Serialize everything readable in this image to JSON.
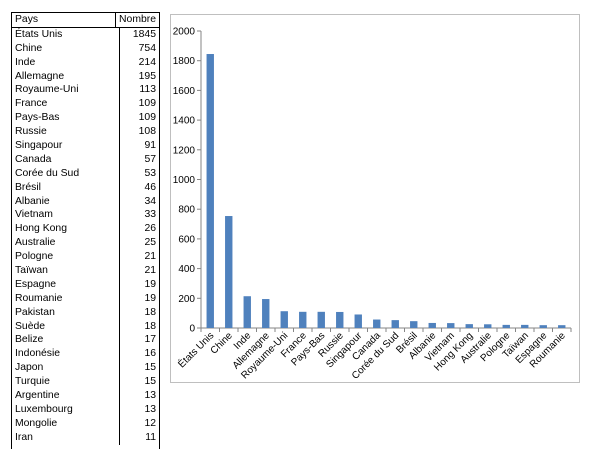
{
  "table": {
    "headers": [
      "Pays",
      "Nombre"
    ],
    "rows": [
      [
        "États Unis",
        "1845"
      ],
      [
        "Chine",
        "754"
      ],
      [
        "Inde",
        "214"
      ],
      [
        "Allemagne",
        "195"
      ],
      [
        "Royaume-Uni",
        "113"
      ],
      [
        "France",
        "109"
      ],
      [
        "Pays-Bas",
        "109"
      ],
      [
        "Russie",
        "108"
      ],
      [
        "Singapour",
        "91"
      ],
      [
        "Canada",
        "57"
      ],
      [
        "Corée du Sud",
        "53"
      ],
      [
        "Brésil",
        "46"
      ],
      [
        "Albanie",
        "34"
      ],
      [
        "Vietnam",
        "33"
      ],
      [
        "Hong Kong",
        "26"
      ],
      [
        "Australie",
        "25"
      ],
      [
        "Pologne",
        "21"
      ],
      [
        "Taïwan",
        "21"
      ],
      [
        "Espagne",
        "19"
      ],
      [
        "Roumanie",
        "19"
      ],
      [
        "Pakistan",
        "18"
      ],
      [
        "Suède",
        "18"
      ],
      [
        "Belize",
        "17"
      ],
      [
        "Indonésie",
        "16"
      ],
      [
        "Japon",
        "15"
      ],
      [
        "Turquie",
        "15"
      ],
      [
        "Argentine",
        "13"
      ],
      [
        "Luxembourg",
        "13"
      ],
      [
        "Mongolie",
        "12"
      ],
      [
        "Iran",
        "11"
      ]
    ]
  },
  "chart_data": {
    "type": "bar",
    "categories": [
      "États Unis",
      "Chine",
      "Inde",
      "Allemagne",
      "Royaume-Uni",
      "France",
      "Pays-Bas",
      "Russie",
      "Singapour",
      "Canada",
      "Corée du Sud",
      "Brésil",
      "Albanie",
      "Vietnam",
      "Hong Kong",
      "Australie",
      "Pologne",
      "Taïwan",
      "Espagne",
      "Roumanie"
    ],
    "values": [
      1845,
      754,
      214,
      195,
      113,
      109,
      109,
      108,
      91,
      57,
      53,
      46,
      34,
      33,
      26,
      25,
      21,
      21,
      19,
      19
    ],
    "ylim": [
      0,
      2000
    ],
    "yticks": [
      0,
      200,
      400,
      600,
      800,
      1000,
      1200,
      1400,
      1600,
      1800,
      2000
    ],
    "grid": false,
    "legend": "none",
    "bar_color": "#4f81bd"
  }
}
